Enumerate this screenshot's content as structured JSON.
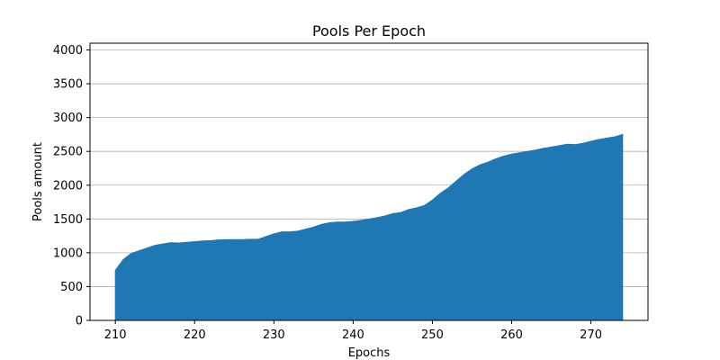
{
  "chart_data": {
    "type": "area",
    "title": "Pools Per Epoch",
    "xlabel": "Epochs",
    "ylabel": "Pools amount",
    "xlim": [
      206.8,
      277.2
    ],
    "ylim": [
      0,
      4100
    ],
    "xticks": [
      210,
      220,
      230,
      240,
      250,
      260,
      270
    ],
    "yticks": [
      0,
      500,
      1000,
      1500,
      2000,
      2500,
      3000,
      3500,
      4000
    ],
    "grid": "y-axis horizontal lines",
    "color": "#1f77b4",
    "series": [
      {
        "name": "Pools amount",
        "x": [
          210,
          211,
          212,
          213,
          214,
          215,
          216,
          217,
          218,
          219,
          220,
          221,
          222,
          223,
          224,
          225,
          226,
          227,
          228,
          229,
          230,
          231,
          232,
          233,
          234,
          235,
          236,
          237,
          238,
          239,
          240,
          241,
          242,
          243,
          244,
          245,
          246,
          247,
          248,
          249,
          250,
          251,
          252,
          253,
          254,
          255,
          256,
          257,
          258,
          259,
          260,
          261,
          262,
          263,
          264,
          265,
          266,
          267,
          268,
          269,
          270,
          271,
          272,
          273,
          274
        ],
        "values": [
          740,
          900,
          990,
          1030,
          1070,
          1110,
          1130,
          1150,
          1145,
          1155,
          1165,
          1175,
          1180,
          1190,
          1195,
          1195,
          1195,
          1200,
          1200,
          1240,
          1280,
          1310,
          1310,
          1320,
          1350,
          1380,
          1420,
          1445,
          1455,
          1455,
          1465,
          1480,
          1500,
          1520,
          1545,
          1580,
          1595,
          1640,
          1665,
          1700,
          1780,
          1880,
          1960,
          2060,
          2160,
          2240,
          2300,
          2340,
          2390,
          2430,
          2460,
          2480,
          2500,
          2520,
          2545,
          2565,
          2585,
          2605,
          2600,
          2620,
          2650,
          2675,
          2695,
          2715,
          2750
        ]
      }
    ]
  }
}
